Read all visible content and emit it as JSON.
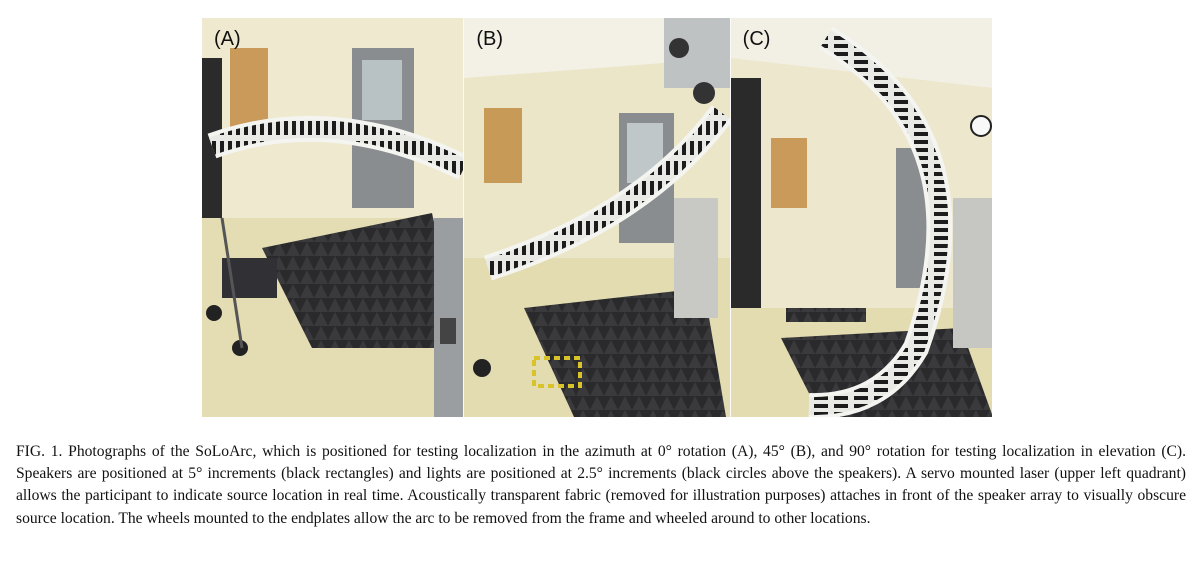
{
  "figure": {
    "panels": [
      {
        "label": "(A)"
      },
      {
        "label": "(B)"
      },
      {
        "label": "(C)"
      }
    ]
  },
  "caption": {
    "text": "FIG. 1. Photographs of the SoLoArc, which is positioned for testing localization in the azimuth at 0° rotation (A), 45° (B), and 90° rotation for testing localization in elevation (C). Speakers are positioned at 5° increments (black rectangles) and lights are positioned at 2.5° increments (black circles above the speakers). A servo mounted laser (upper left quadrant) allows the participant to indicate source location in real time. Acoustically transparent fabric (removed for illustration purposes) attaches in front of the speaker array to visually obscure source location. The wheels mounted to the endplates allow the arc to be removed from the frame and wheeled around to other locations."
  }
}
